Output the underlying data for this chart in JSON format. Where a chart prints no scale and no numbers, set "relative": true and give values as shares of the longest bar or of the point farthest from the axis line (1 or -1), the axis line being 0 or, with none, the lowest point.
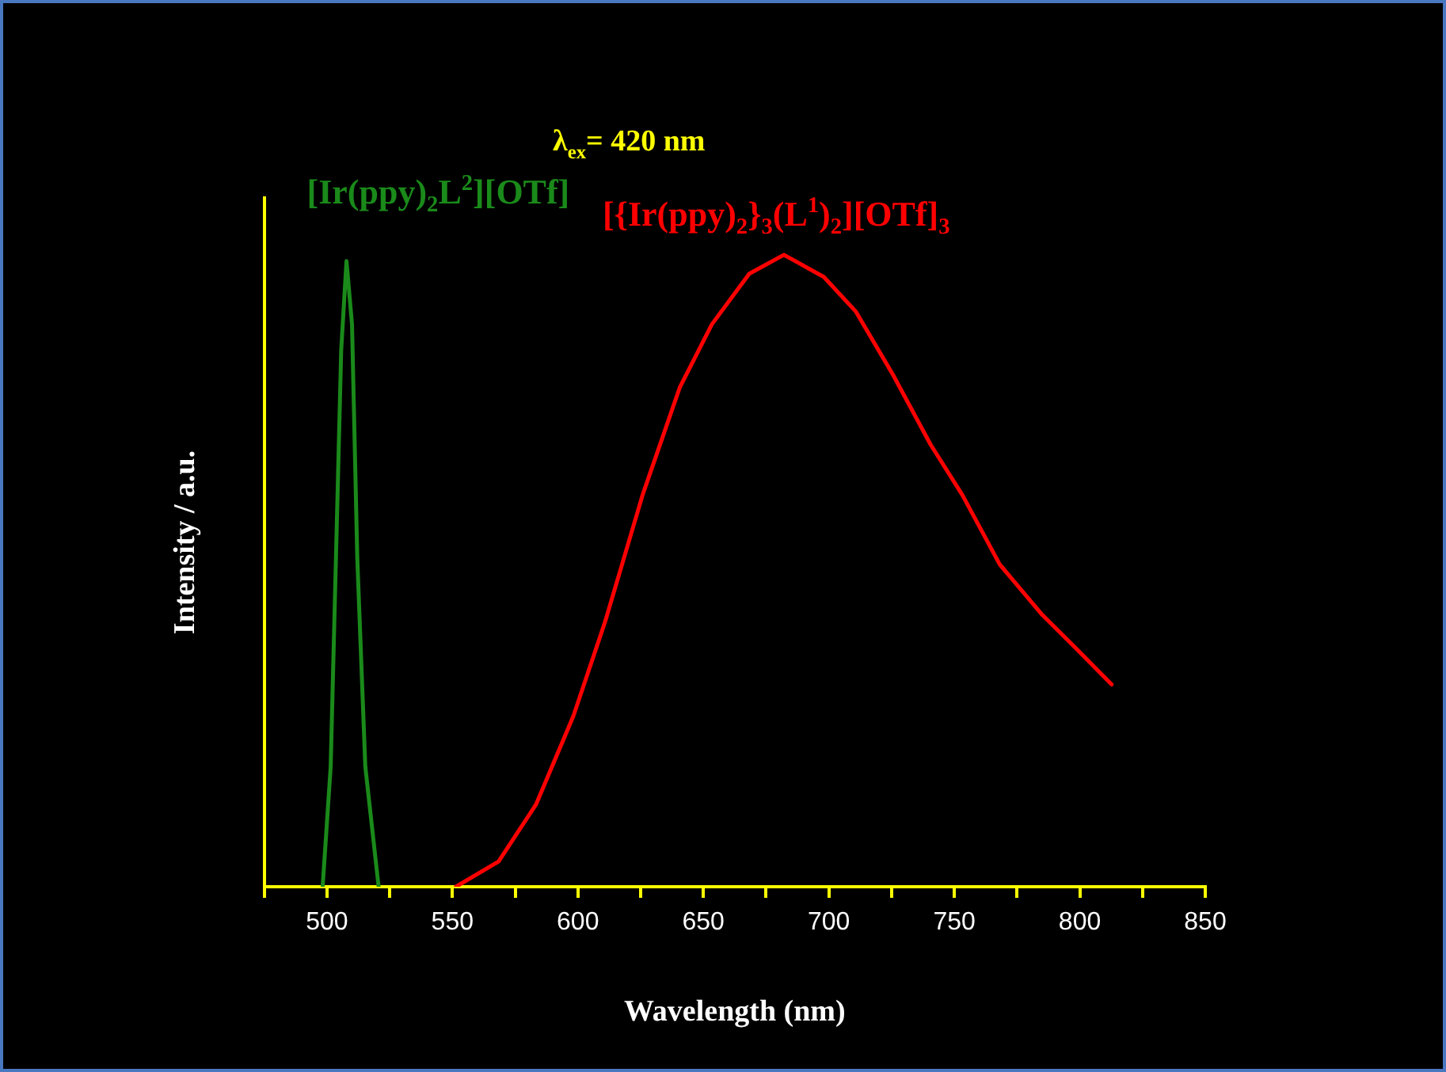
{
  "chart_data": {
    "type": "line",
    "xlabel": "Wavelength (nm)",
    "ylabel": "Intensity / a.u.",
    "relative": true,
    "xlim": [
      475,
      850
    ],
    "xticks": [
      {
        "value": 475,
        "label": null
      },
      500,
      {
        "value": 525,
        "label": null
      },
      550,
      {
        "value": 575,
        "label": null
      },
      600,
      {
        "value": 625,
        "label": null
      },
      650,
      {
        "value": 675,
        "label": null
      },
      700,
      {
        "value": 725,
        "label": null
      },
      750,
      {
        "value": 775,
        "label": null
      },
      800,
      {
        "value": 825,
        "label": null
      },
      850
    ],
    "tick_labels": "x",
    "grid": false,
    "legend": false,
    "marker": "none",
    "line_style": "solid",
    "annotations": [
      "λ$_{ex}$= 420 nm"
    ],
    "series": [
      {
        "name": "[Ir(ppy)$_{2}$L$^{2}$][OTf]",
        "color": "#1a8a1a",
        "x": [
          498.3,
          501.5,
          503.6,
          505.7,
          507.8,
          510,
          512.1,
          515.3,
          520.6
        ],
        "values": [
          0,
          0.19,
          0.52,
          0.85,
          0.99,
          0.89,
          0.52,
          0.19,
          0
        ]
      },
      {
        "name": "[{Ir(ppy)$_{2}$}$_{3}$(L$^{1}$)$_{2}$][OTf]$_{3}$",
        "color": "#ff0000",
        "x": [
          551.4,
          568.4,
          583.3,
          598.2,
          610.9,
          625.8,
          640.6,
          653.4,
          668.3,
          682.1,
          698,
          710.8,
          725.6,
          740.5,
          753.2,
          768.1,
          785.1,
          797.8,
          812.7
        ],
        "values": [
          0,
          0.04,
          0.13,
          0.27,
          0.42,
          0.62,
          0.79,
          0.89,
          0.97,
          1,
          0.965,
          0.91,
          0.81,
          0.7,
          0.62,
          0.51,
          0.43,
          0.38,
          0.32
        ]
      }
    ]
  }
}
